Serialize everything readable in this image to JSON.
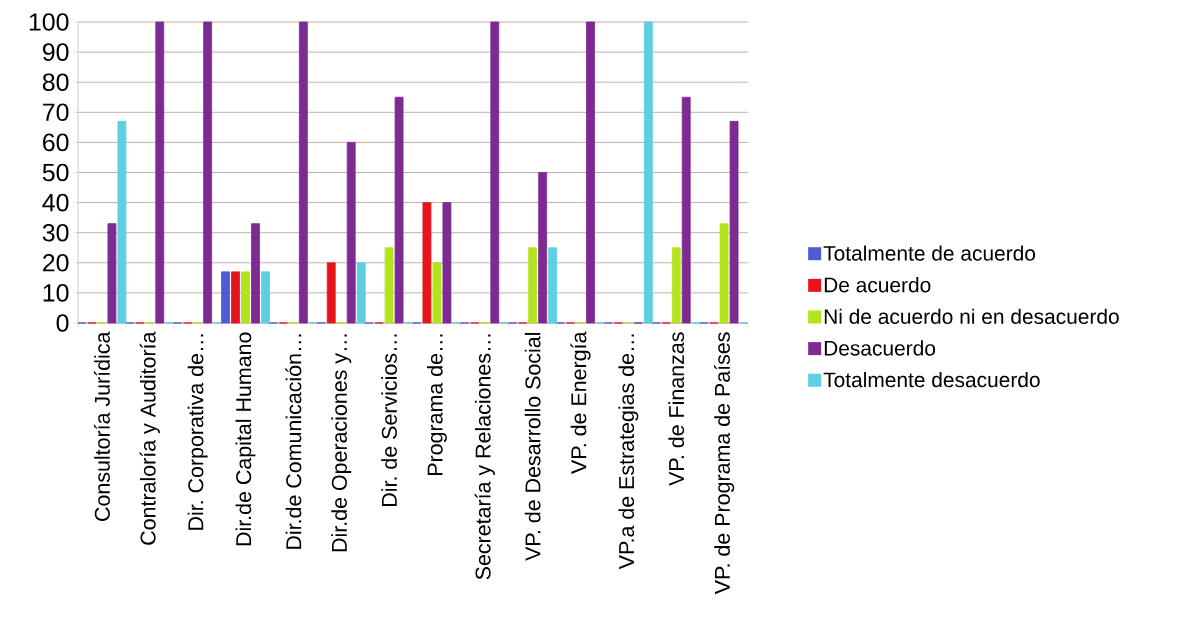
{
  "chart_data": {
    "type": "bar",
    "categories": [
      "Consultoría Jurídica",
      "Contraloría y Auditoría",
      "Dir. Corporativa de…",
      "Dir.de Capital Humano",
      "Dir.de Comunicación…",
      "Dir.de Operaciones y…",
      "Dir. de Servicios…",
      "Programa de…",
      "Secretaría y Relaciones…",
      "VP. de Desarrollo Social",
      "VP. de Energía",
      "VP.a de Estrategias de…",
      "VP. de Finanzas",
      "VP. de Programa de Países"
    ],
    "series": [
      {
        "name": "Totalmente de acuerdo",
        "color": "#4f5bd5",
        "values": [
          0,
          0,
          0,
          17,
          0,
          0,
          0,
          0,
          0,
          0,
          0,
          0,
          0,
          0
        ]
      },
      {
        "name": "De acuerdo",
        "color": "#e8141b",
        "values": [
          0,
          0,
          0,
          17,
          0,
          20,
          0,
          40,
          0,
          0,
          0,
          0,
          0,
          0
        ]
      },
      {
        "name": "Ni de acuerdo ni en desacuerdo",
        "color": "#b2e41e",
        "values": [
          0,
          0,
          0,
          17,
          0,
          0,
          25,
          20,
          0,
          25,
          0,
          0,
          25,
          33
        ]
      },
      {
        "name": "Desacuerdo",
        "color": "#7d2a93",
        "values": [
          33,
          100,
          100,
          33,
          100,
          60,
          75,
          40,
          100,
          50,
          100,
          0,
          75,
          67
        ]
      },
      {
        "name": "Totalmente desacuerdo",
        "color": "#5ccfe3",
        "values": [
          67,
          0,
          0,
          17,
          0,
          20,
          0,
          0,
          0,
          25,
          0,
          100,
          0,
          0
        ]
      }
    ],
    "ylim": [
      0,
      100
    ],
    "yticks": [
      0,
      10,
      20,
      30,
      40,
      50,
      60,
      70,
      80,
      90,
      100
    ],
    "grid": "y",
    "legend": "right"
  }
}
